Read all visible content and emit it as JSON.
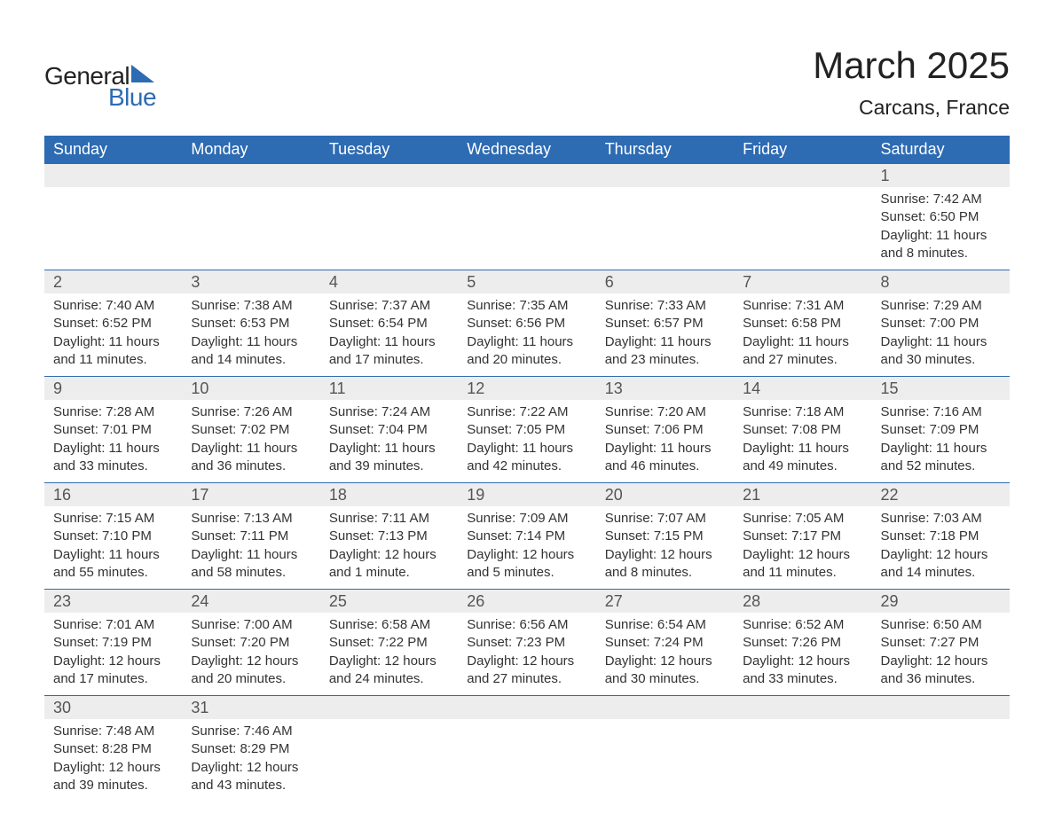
{
  "logo": {
    "text_general": "General",
    "text_blue": "Blue",
    "accent_color": "#2d6bb3"
  },
  "title": {
    "month_year": "March 2025",
    "location": "Carcans, France"
  },
  "colors": {
    "header_bg": "#2d6bb3",
    "header_text": "#ffffff",
    "daynum_bg": "#ededed",
    "daynum_border": "#2d6bb3",
    "body_text": "#333333",
    "background": "#ffffff"
  },
  "typography": {
    "title_fontsize": 42,
    "location_fontsize": 23,
    "header_fontsize": 18,
    "daynum_fontsize": 18,
    "body_fontsize": 15,
    "font_family": "Arial"
  },
  "day_headers": [
    "Sunday",
    "Monday",
    "Tuesday",
    "Wednesday",
    "Thursday",
    "Friday",
    "Saturday"
  ],
  "weeks": [
    [
      {
        "day": "",
        "sunrise": "",
        "sunset": "",
        "daylight": ""
      },
      {
        "day": "",
        "sunrise": "",
        "sunset": "",
        "daylight": ""
      },
      {
        "day": "",
        "sunrise": "",
        "sunset": "",
        "daylight": ""
      },
      {
        "day": "",
        "sunrise": "",
        "sunset": "",
        "daylight": ""
      },
      {
        "day": "",
        "sunrise": "",
        "sunset": "",
        "daylight": ""
      },
      {
        "day": "",
        "sunrise": "",
        "sunset": "",
        "daylight": ""
      },
      {
        "day": "1",
        "sunrise": "Sunrise: 7:42 AM",
        "sunset": "Sunset: 6:50 PM",
        "daylight": "Daylight: 11 hours and 8 minutes."
      }
    ],
    [
      {
        "day": "2",
        "sunrise": "Sunrise: 7:40 AM",
        "sunset": "Sunset: 6:52 PM",
        "daylight": "Daylight: 11 hours and 11 minutes."
      },
      {
        "day": "3",
        "sunrise": "Sunrise: 7:38 AM",
        "sunset": "Sunset: 6:53 PM",
        "daylight": "Daylight: 11 hours and 14 minutes."
      },
      {
        "day": "4",
        "sunrise": "Sunrise: 7:37 AM",
        "sunset": "Sunset: 6:54 PM",
        "daylight": "Daylight: 11 hours and 17 minutes."
      },
      {
        "day": "5",
        "sunrise": "Sunrise: 7:35 AM",
        "sunset": "Sunset: 6:56 PM",
        "daylight": "Daylight: 11 hours and 20 minutes."
      },
      {
        "day": "6",
        "sunrise": "Sunrise: 7:33 AM",
        "sunset": "Sunset: 6:57 PM",
        "daylight": "Daylight: 11 hours and 23 minutes."
      },
      {
        "day": "7",
        "sunrise": "Sunrise: 7:31 AM",
        "sunset": "Sunset: 6:58 PM",
        "daylight": "Daylight: 11 hours and 27 minutes."
      },
      {
        "day": "8",
        "sunrise": "Sunrise: 7:29 AM",
        "sunset": "Sunset: 7:00 PM",
        "daylight": "Daylight: 11 hours and 30 minutes."
      }
    ],
    [
      {
        "day": "9",
        "sunrise": "Sunrise: 7:28 AM",
        "sunset": "Sunset: 7:01 PM",
        "daylight": "Daylight: 11 hours and 33 minutes."
      },
      {
        "day": "10",
        "sunrise": "Sunrise: 7:26 AM",
        "sunset": "Sunset: 7:02 PM",
        "daylight": "Daylight: 11 hours and 36 minutes."
      },
      {
        "day": "11",
        "sunrise": "Sunrise: 7:24 AM",
        "sunset": "Sunset: 7:04 PM",
        "daylight": "Daylight: 11 hours and 39 minutes."
      },
      {
        "day": "12",
        "sunrise": "Sunrise: 7:22 AM",
        "sunset": "Sunset: 7:05 PM",
        "daylight": "Daylight: 11 hours and 42 minutes."
      },
      {
        "day": "13",
        "sunrise": "Sunrise: 7:20 AM",
        "sunset": "Sunset: 7:06 PM",
        "daylight": "Daylight: 11 hours and 46 minutes."
      },
      {
        "day": "14",
        "sunrise": "Sunrise: 7:18 AM",
        "sunset": "Sunset: 7:08 PM",
        "daylight": "Daylight: 11 hours and 49 minutes."
      },
      {
        "day": "15",
        "sunrise": "Sunrise: 7:16 AM",
        "sunset": "Sunset: 7:09 PM",
        "daylight": "Daylight: 11 hours and 52 minutes."
      }
    ],
    [
      {
        "day": "16",
        "sunrise": "Sunrise: 7:15 AM",
        "sunset": "Sunset: 7:10 PM",
        "daylight": "Daylight: 11 hours and 55 minutes."
      },
      {
        "day": "17",
        "sunrise": "Sunrise: 7:13 AM",
        "sunset": "Sunset: 7:11 PM",
        "daylight": "Daylight: 11 hours and 58 minutes."
      },
      {
        "day": "18",
        "sunrise": "Sunrise: 7:11 AM",
        "sunset": "Sunset: 7:13 PM",
        "daylight": "Daylight: 12 hours and 1 minute."
      },
      {
        "day": "19",
        "sunrise": "Sunrise: 7:09 AM",
        "sunset": "Sunset: 7:14 PM",
        "daylight": "Daylight: 12 hours and 5 minutes."
      },
      {
        "day": "20",
        "sunrise": "Sunrise: 7:07 AM",
        "sunset": "Sunset: 7:15 PM",
        "daylight": "Daylight: 12 hours and 8 minutes."
      },
      {
        "day": "21",
        "sunrise": "Sunrise: 7:05 AM",
        "sunset": "Sunset: 7:17 PM",
        "daylight": "Daylight: 12 hours and 11 minutes."
      },
      {
        "day": "22",
        "sunrise": "Sunrise: 7:03 AM",
        "sunset": "Sunset: 7:18 PM",
        "daylight": "Daylight: 12 hours and 14 minutes."
      }
    ],
    [
      {
        "day": "23",
        "sunrise": "Sunrise: 7:01 AM",
        "sunset": "Sunset: 7:19 PM",
        "daylight": "Daylight: 12 hours and 17 minutes."
      },
      {
        "day": "24",
        "sunrise": "Sunrise: 7:00 AM",
        "sunset": "Sunset: 7:20 PM",
        "daylight": "Daylight: 12 hours and 20 minutes."
      },
      {
        "day": "25",
        "sunrise": "Sunrise: 6:58 AM",
        "sunset": "Sunset: 7:22 PM",
        "daylight": "Daylight: 12 hours and 24 minutes."
      },
      {
        "day": "26",
        "sunrise": "Sunrise: 6:56 AM",
        "sunset": "Sunset: 7:23 PM",
        "daylight": "Daylight: 12 hours and 27 minutes."
      },
      {
        "day": "27",
        "sunrise": "Sunrise: 6:54 AM",
        "sunset": "Sunset: 7:24 PM",
        "daylight": "Daylight: 12 hours and 30 minutes."
      },
      {
        "day": "28",
        "sunrise": "Sunrise: 6:52 AM",
        "sunset": "Sunset: 7:26 PM",
        "daylight": "Daylight: 12 hours and 33 minutes."
      },
      {
        "day": "29",
        "sunrise": "Sunrise: 6:50 AM",
        "sunset": "Sunset: 7:27 PM",
        "daylight": "Daylight: 12 hours and 36 minutes."
      }
    ],
    [
      {
        "day": "30",
        "sunrise": "Sunrise: 7:48 AM",
        "sunset": "Sunset: 8:28 PM",
        "daylight": "Daylight: 12 hours and 39 minutes."
      },
      {
        "day": "31",
        "sunrise": "Sunrise: 7:46 AM",
        "sunset": "Sunset: 8:29 PM",
        "daylight": "Daylight: 12 hours and 43 minutes."
      },
      {
        "day": "",
        "sunrise": "",
        "sunset": "",
        "daylight": ""
      },
      {
        "day": "",
        "sunrise": "",
        "sunset": "",
        "daylight": ""
      },
      {
        "day": "",
        "sunrise": "",
        "sunset": "",
        "daylight": ""
      },
      {
        "day": "",
        "sunrise": "",
        "sunset": "",
        "daylight": ""
      },
      {
        "day": "",
        "sunrise": "",
        "sunset": "",
        "daylight": ""
      }
    ]
  ]
}
